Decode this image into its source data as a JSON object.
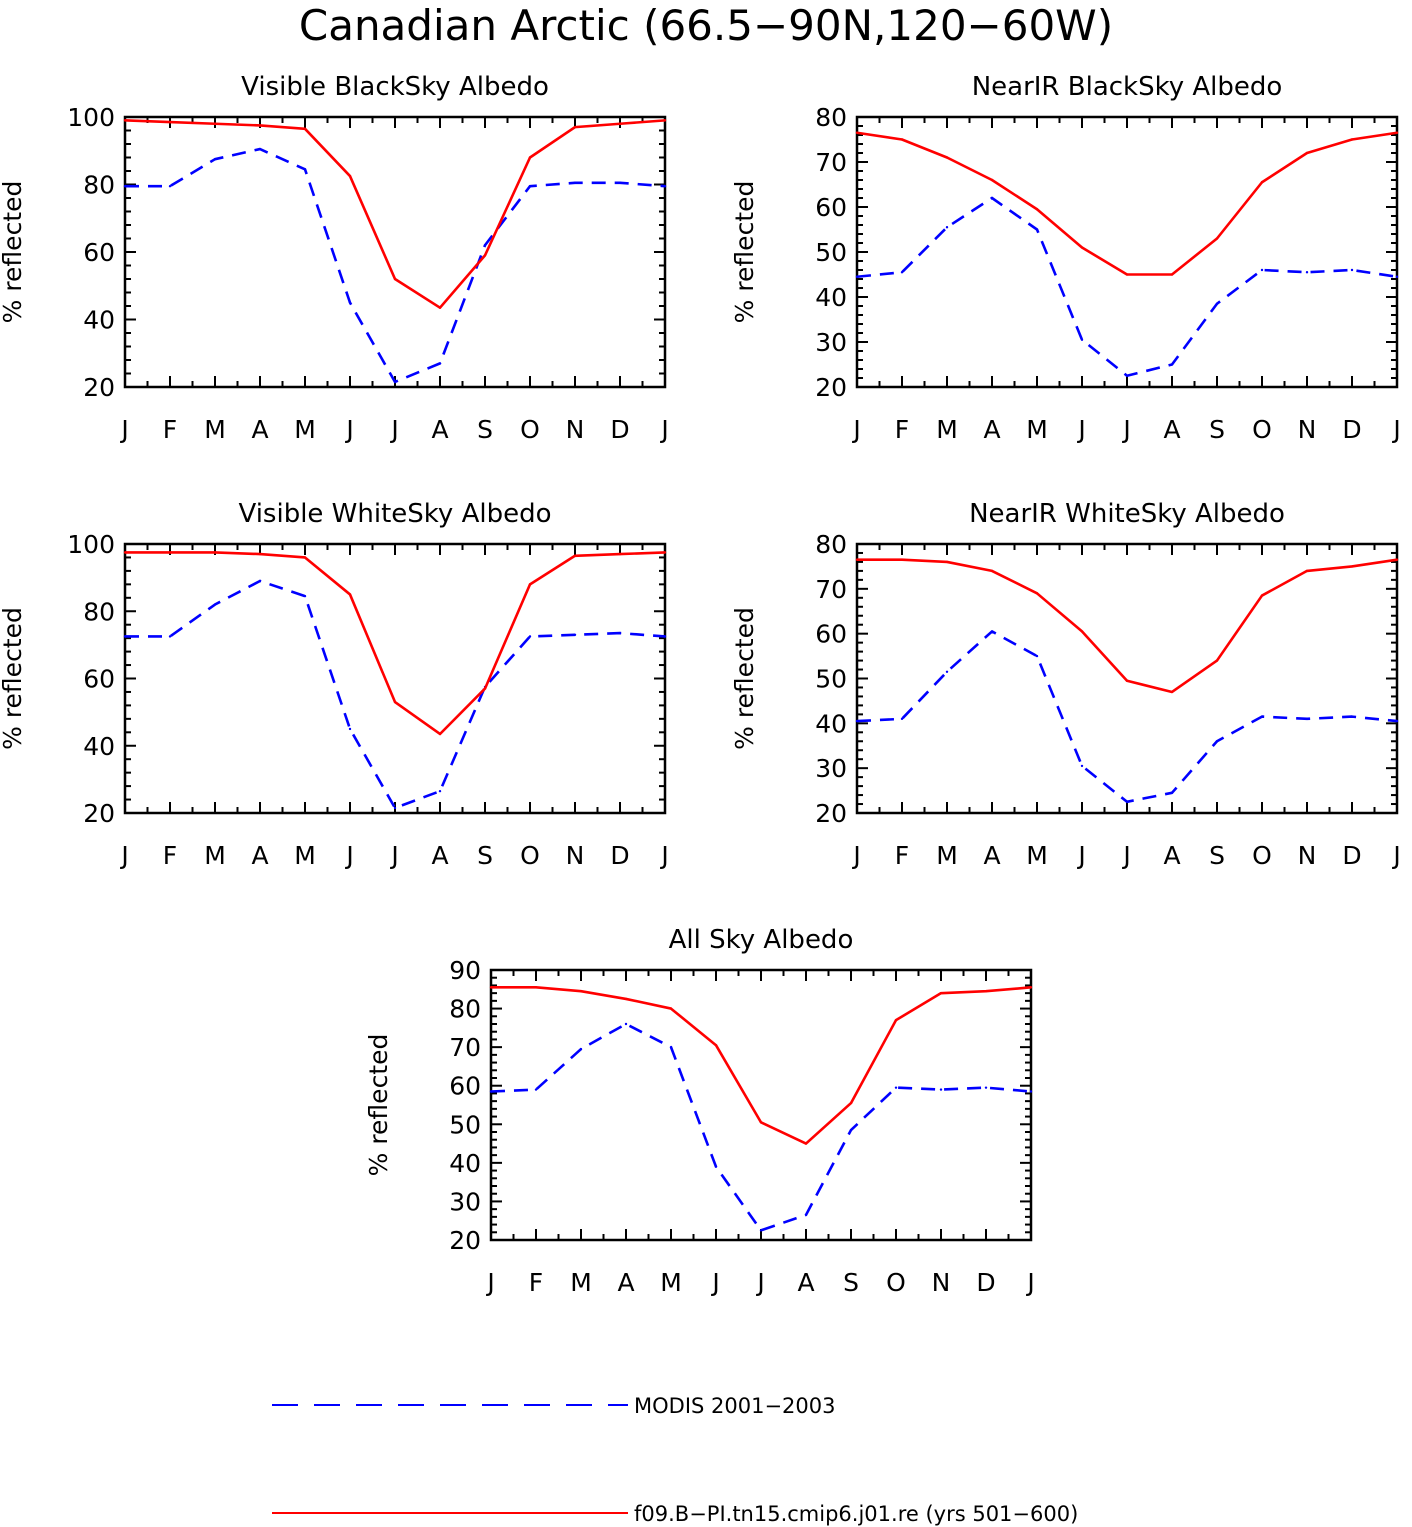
{
  "figure": {
    "title": "Canadian Arctic (66.5−90N,120−60W)"
  },
  "legend": {
    "items": [
      {
        "label": "MODIS 2001−2003",
        "color": "#0000ff",
        "style": "dashed"
      },
      {
        "label": "f09.B−PI.tn15.cmip6.j01.re (yrs 501−600)",
        "color": "#ff0000",
        "style": "solid"
      }
    ]
  },
  "chart_data": [
    {
      "type": "line",
      "title": "Visible BlackSky Albedo",
      "ylabel": "% reflected",
      "xlabel": "",
      "categories": [
        "J",
        "F",
        "M",
        "A",
        "M",
        "J",
        "J",
        "A",
        "S",
        "O",
        "N",
        "D",
        "J"
      ],
      "ylim": [
        20,
        100
      ],
      "yticks": [
        20,
        40,
        60,
        80,
        100
      ],
      "series": [
        {
          "name": "MODIS 2001−2003",
          "color": "#0000ff",
          "style": "dashed",
          "values": [
            79.5,
            79.5,
            87.5,
            90.5,
            84.5,
            45,
            21.5,
            27,
            62,
            79.5,
            80.5,
            80.5,
            79.5
          ]
        },
        {
          "name": "f09.B−PI.tn15.cmip6.j01.re (yrs 501−600)",
          "color": "#ff0000",
          "style": "solid",
          "values": [
            99,
            98.5,
            98,
            97.5,
            96.5,
            82.5,
            52,
            43.5,
            59,
            88,
            97,
            98,
            99
          ]
        }
      ]
    },
    {
      "type": "line",
      "title": "NearIR BlackSky Albedo",
      "ylabel": "% reflected",
      "xlabel": "",
      "categories": [
        "J",
        "F",
        "M",
        "A",
        "M",
        "J",
        "J",
        "A",
        "S",
        "O",
        "N",
        "D",
        "J"
      ],
      "ylim": [
        20,
        80
      ],
      "yticks": [
        20,
        30,
        40,
        50,
        60,
        70,
        80
      ],
      "series": [
        {
          "name": "MODIS 2001−2003",
          "color": "#0000ff",
          "style": "dashed",
          "values": [
            44.5,
            45.5,
            55.5,
            62,
            55,
            30.5,
            22.5,
            25,
            38.5,
            46,
            45.5,
            46,
            44.5
          ]
        },
        {
          "name": "f09.B−PI.tn15.cmip6.j01.re (yrs 501−600)",
          "color": "#ff0000",
          "style": "solid",
          "values": [
            76.5,
            75,
            71,
            66,
            59.5,
            51,
            45,
            45,
            53,
            65.5,
            72,
            75,
            76.5
          ]
        }
      ]
    },
    {
      "type": "line",
      "title": "Visible WhiteSky Albedo",
      "ylabel": "% reflected",
      "xlabel": "",
      "categories": [
        "J",
        "F",
        "M",
        "A",
        "M",
        "J",
        "J",
        "A",
        "S",
        "O",
        "N",
        "D",
        "J"
      ],
      "ylim": [
        20,
        100
      ],
      "yticks": [
        20,
        40,
        60,
        80,
        100
      ],
      "series": [
        {
          "name": "MODIS 2001−2003",
          "color": "#0000ff",
          "style": "dashed",
          "values": [
            72.5,
            72.5,
            82,
            89,
            84.5,
            45,
            21.5,
            26.5,
            57.5,
            72.5,
            73,
            73.5,
            72.5
          ]
        },
        {
          "name": "f09.B−PI.tn15.cmip6.j01.re (yrs 501−600)",
          "color": "#ff0000",
          "style": "solid",
          "values": [
            97.5,
            97.5,
            97.5,
            97,
            96,
            85,
            53,
            43.5,
            57,
            88,
            96.5,
            97,
            97.5
          ]
        }
      ]
    },
    {
      "type": "line",
      "title": "NearIR WhiteSky Albedo",
      "ylabel": "% reflected",
      "xlabel": "",
      "categories": [
        "J",
        "F",
        "M",
        "A",
        "M",
        "J",
        "J",
        "A",
        "S",
        "O",
        "N",
        "D",
        "J"
      ],
      "ylim": [
        20,
        80
      ],
      "yticks": [
        20,
        30,
        40,
        50,
        60,
        70,
        80
      ],
      "series": [
        {
          "name": "MODIS 2001−2003",
          "color": "#0000ff",
          "style": "dashed",
          "values": [
            40.5,
            41,
            51.5,
            60.5,
            55,
            30.5,
            22.5,
            24.5,
            36,
            41.5,
            41,
            41.5,
            40.5
          ]
        },
        {
          "name": "f09.B−PI.tn15.cmip6.j01.re (yrs 501−600)",
          "color": "#ff0000",
          "style": "solid",
          "values": [
            76.5,
            76.5,
            76,
            74,
            69,
            60.5,
            49.5,
            47,
            54,
            68.5,
            74,
            75,
            76.5
          ]
        }
      ]
    },
    {
      "type": "line",
      "title": "All Sky Albedo",
      "ylabel": "% reflected",
      "xlabel": "",
      "categories": [
        "J",
        "F",
        "M",
        "A",
        "M",
        "J",
        "J",
        "A",
        "S",
        "O",
        "N",
        "D",
        "J"
      ],
      "ylim": [
        20,
        90
      ],
      "yticks": [
        20,
        30,
        40,
        50,
        60,
        70,
        80,
        90
      ],
      "series": [
        {
          "name": "MODIS 2001−2003",
          "color": "#0000ff",
          "style": "dashed",
          "values": [
            58.5,
            59,
            69.5,
            76,
            70,
            39,
            22.5,
            26.5,
            48.5,
            59.5,
            59,
            59.5,
            58.5
          ]
        },
        {
          "name": "f09.B−PI.tn15.cmip6.j01.re (yrs 501−600)",
          "color": "#ff0000",
          "style": "solid",
          "values": [
            85.5,
            85.5,
            84.5,
            82.5,
            80,
            70.5,
            50.5,
            45,
            55.5,
            77,
            84,
            84.5,
            85.5
          ]
        }
      ]
    }
  ]
}
